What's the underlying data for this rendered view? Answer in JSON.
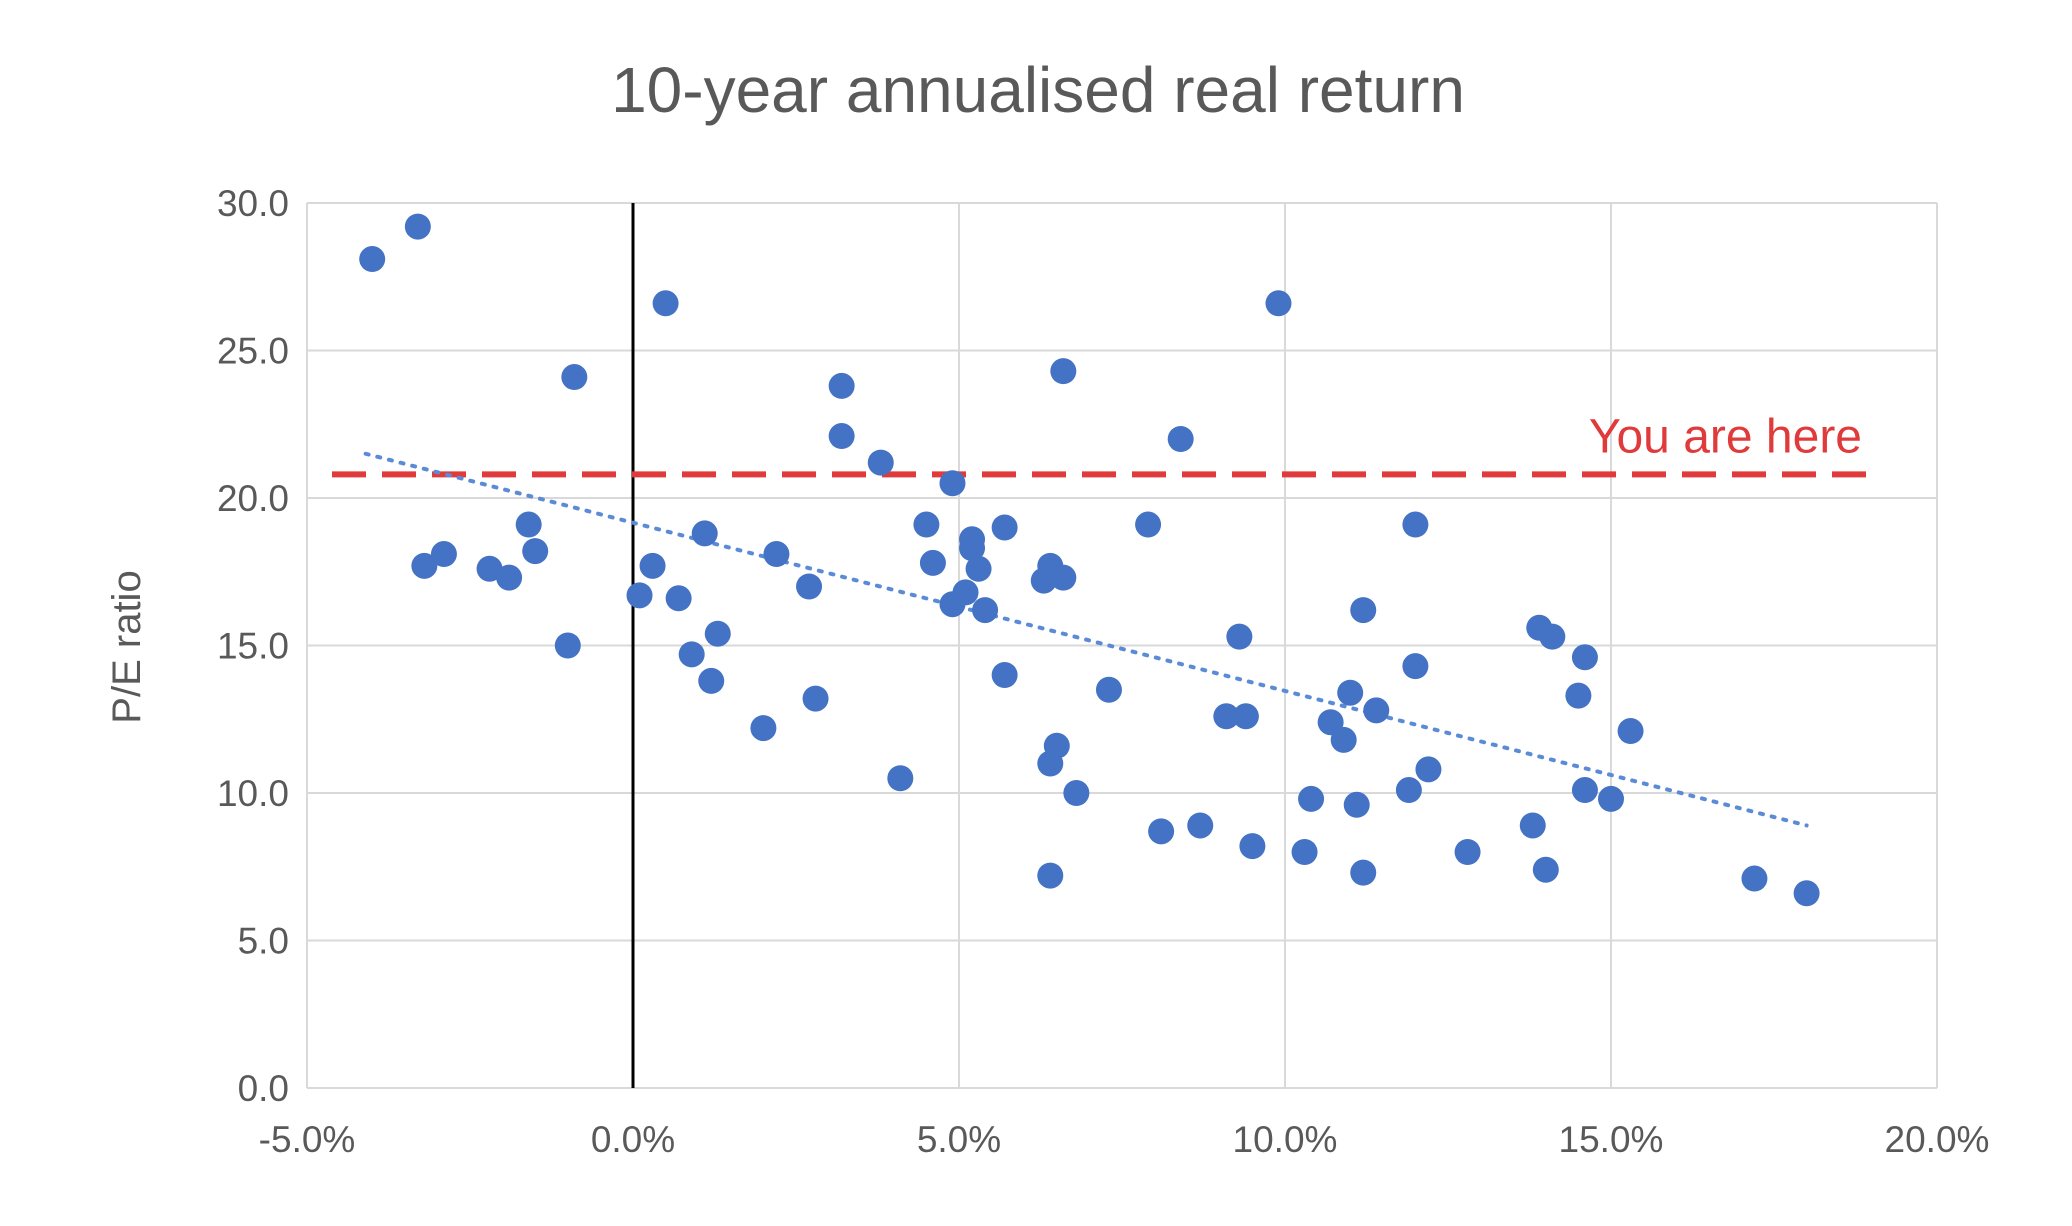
{
  "chart_data": {
    "type": "scatter",
    "title": "10-year annualised real return",
    "xlabel": "",
    "ylabel": "P/E ratio",
    "xlim": [
      -0.05,
      0.2
    ],
    "ylim": [
      0,
      30
    ],
    "x_ticks": [
      "-5.0%",
      "0.0%",
      "5.0%",
      "10.0%",
      "15.0%",
      "20.0%"
    ],
    "y_ticks": [
      "0.0",
      "5.0",
      "10.0",
      "15.0",
      "20.0",
      "25.0",
      "30.0"
    ],
    "grid": true,
    "legend": "none",
    "colors": {
      "points": "#4472c4",
      "trendline": "#5b8bd6",
      "reference": "#e03a3a",
      "zero_line": "#000000",
      "grid": "#d9d9d9"
    },
    "reference_line": {
      "y": 20.8,
      "label": "You are here"
    },
    "zero_vertical_line": {
      "x": 0.0
    },
    "trendline": {
      "style": "dotted",
      "x_start": -0.041,
      "y_start": 21.5,
      "x_end": 0.18,
      "y_end": 8.9
    },
    "series": [
      {
        "points": [
          {
            "x": -0.04,
            "y": 28.1
          },
          {
            "x": -0.033,
            "y": 29.2
          },
          {
            "x": -0.032,
            "y": 17.7
          },
          {
            "x": -0.029,
            "y": 18.1
          },
          {
            "x": -0.022,
            "y": 17.6
          },
          {
            "x": -0.019,
            "y": 17.3
          },
          {
            "x": -0.016,
            "y": 19.1
          },
          {
            "x": -0.015,
            "y": 18.2
          },
          {
            "x": -0.009,
            "y": 24.1
          },
          {
            "x": -0.01,
            "y": 15.0
          },
          {
            "x": 0.001,
            "y": 16.7
          },
          {
            "x": 0.003,
            "y": 17.7
          },
          {
            "x": 0.005,
            "y": 26.6
          },
          {
            "x": 0.007,
            "y": 16.6
          },
          {
            "x": 0.009,
            "y": 14.7
          },
          {
            "x": 0.011,
            "y": 18.8
          },
          {
            "x": 0.012,
            "y": 13.8
          },
          {
            "x": 0.013,
            "y": 15.4
          },
          {
            "x": 0.02,
            "y": 12.2
          },
          {
            "x": 0.022,
            "y": 18.1
          },
          {
            "x": 0.027,
            "y": 17.0
          },
          {
            "x": 0.028,
            "y": 13.2
          },
          {
            "x": 0.032,
            "y": 22.1
          },
          {
            "x": 0.032,
            "y": 23.8
          },
          {
            "x": 0.038,
            "y": 21.2
          },
          {
            "x": 0.041,
            "y": 10.5
          },
          {
            "x": 0.045,
            "y": 19.1
          },
          {
            "x": 0.046,
            "y": 17.8
          },
          {
            "x": 0.049,
            "y": 20.5
          },
          {
            "x": 0.049,
            "y": 16.4
          },
          {
            "x": 0.051,
            "y": 16.8
          },
          {
            "x": 0.052,
            "y": 18.6
          },
          {
            "x": 0.052,
            "y": 18.3
          },
          {
            "x": 0.053,
            "y": 17.6
          },
          {
            "x": 0.054,
            "y": 16.2
          },
          {
            "x": 0.057,
            "y": 19.0
          },
          {
            "x": 0.057,
            "y": 14.0
          },
          {
            "x": 0.063,
            "y": 17.2
          },
          {
            "x": 0.064,
            "y": 17.7
          },
          {
            "x": 0.066,
            "y": 17.3
          },
          {
            "x": 0.066,
            "y": 24.3
          },
          {
            "x": 0.064,
            "y": 11.0
          },
          {
            "x": 0.065,
            "y": 11.6
          },
          {
            "x": 0.068,
            "y": 10.0
          },
          {
            "x": 0.064,
            "y": 7.2
          },
          {
            "x": 0.073,
            "y": 13.5
          },
          {
            "x": 0.079,
            "y": 19.1
          },
          {
            "x": 0.081,
            "y": 8.7
          },
          {
            "x": 0.084,
            "y": 22.0
          },
          {
            "x": 0.087,
            "y": 8.9
          },
          {
            "x": 0.091,
            "y": 12.6
          },
          {
            "x": 0.093,
            "y": 15.3
          },
          {
            "x": 0.094,
            "y": 12.6
          },
          {
            "x": 0.095,
            "y": 8.2
          },
          {
            "x": 0.099,
            "y": 26.6
          },
          {
            "x": 0.103,
            "y": 8.0
          },
          {
            "x": 0.104,
            "y": 9.8
          },
          {
            "x": 0.107,
            "y": 12.4
          },
          {
            "x": 0.109,
            "y": 11.8
          },
          {
            "x": 0.11,
            "y": 13.4
          },
          {
            "x": 0.111,
            "y": 9.6
          },
          {
            "x": 0.112,
            "y": 16.2
          },
          {
            "x": 0.112,
            "y": 7.3
          },
          {
            "x": 0.114,
            "y": 12.8
          },
          {
            "x": 0.119,
            "y": 10.1
          },
          {
            "x": 0.12,
            "y": 19.1
          },
          {
            "x": 0.12,
            "y": 14.3
          },
          {
            "x": 0.122,
            "y": 10.8
          },
          {
            "x": 0.128,
            "y": 8.0
          },
          {
            "x": 0.138,
            "y": 8.9
          },
          {
            "x": 0.139,
            "y": 15.6
          },
          {
            "x": 0.14,
            "y": 7.4
          },
          {
            "x": 0.141,
            "y": 15.3
          },
          {
            "x": 0.145,
            "y": 13.3
          },
          {
            "x": 0.146,
            "y": 10.1
          },
          {
            "x": 0.146,
            "y": 14.6
          },
          {
            "x": 0.15,
            "y": 9.8
          },
          {
            "x": 0.153,
            "y": 12.1
          },
          {
            "x": 0.172,
            "y": 7.1
          },
          {
            "x": 0.18,
            "y": 6.6
          }
        ]
      }
    ]
  }
}
